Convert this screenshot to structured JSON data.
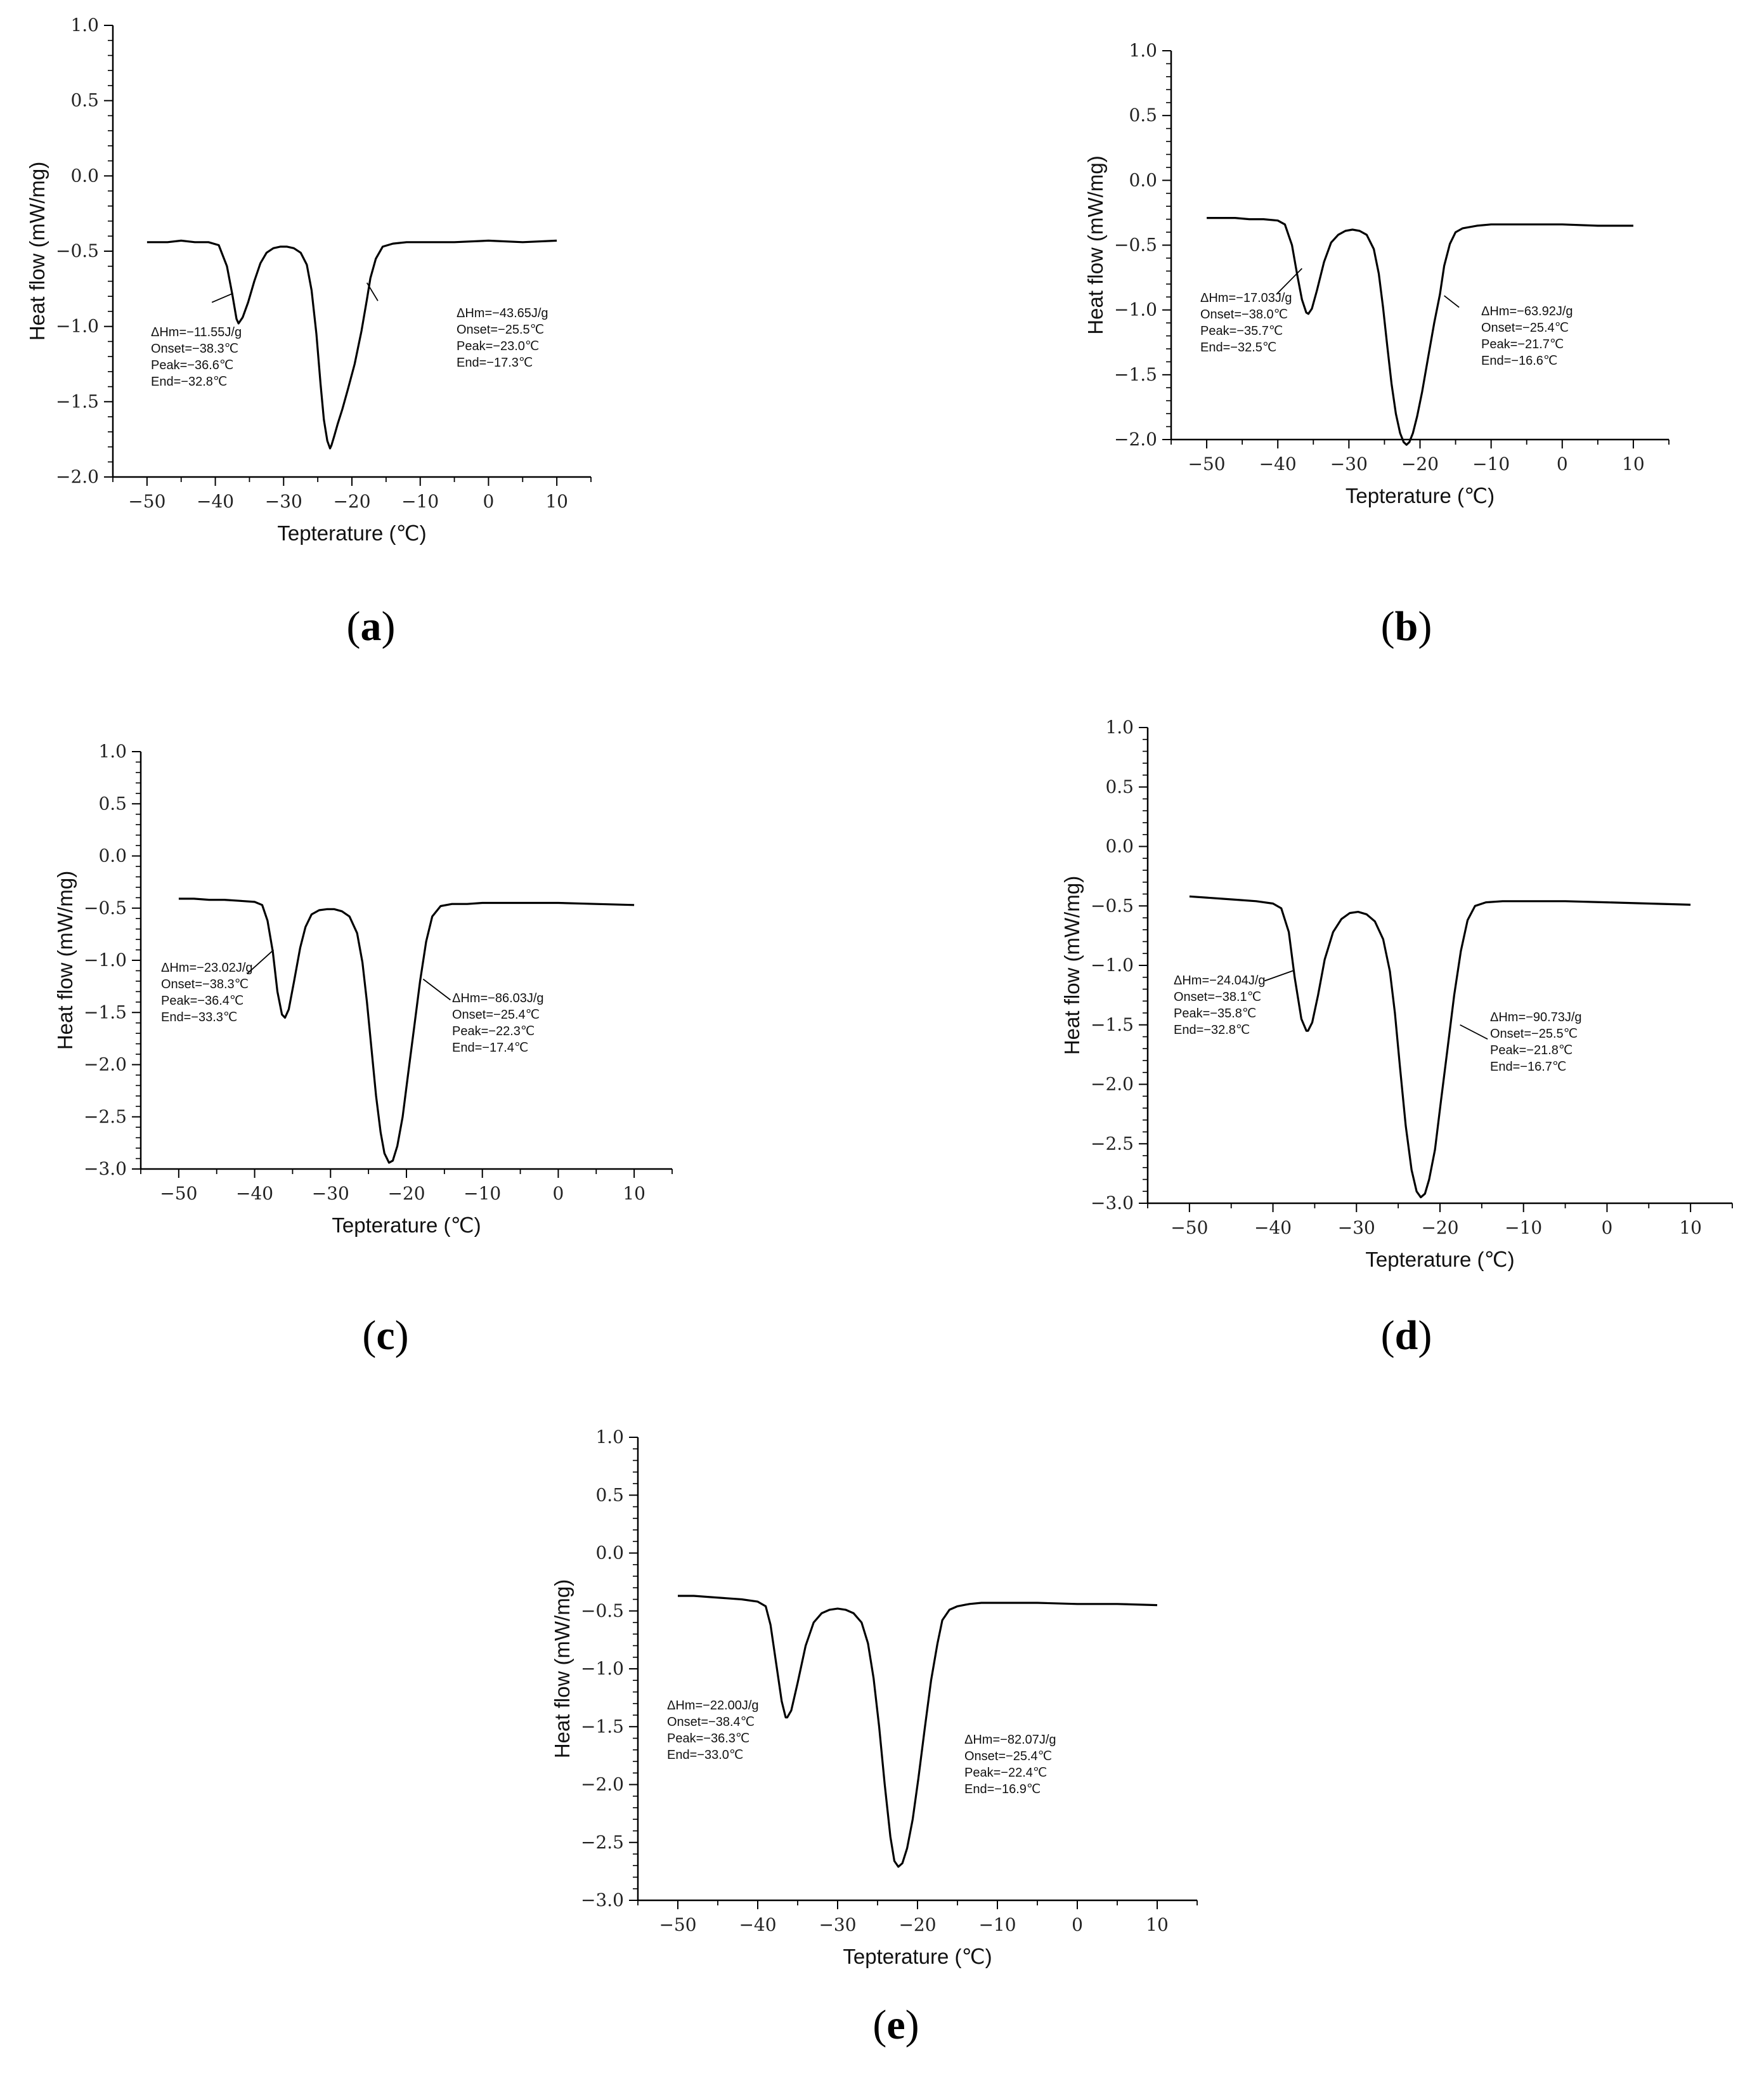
{
  "figure_labels": [
    "a",
    "b",
    "c",
    "d",
    "e"
  ],
  "chart_data": [
    {
      "id": "a",
      "type": "line",
      "xlabel": "Tepterature (℃)",
      "ylabel": "Heat flow (mW/mg)",
      "xlim": [
        -55,
        15
      ],
      "ylim": [
        -2.0,
        1.0
      ],
      "xticks": [
        -50,
        -40,
        -30,
        -20,
        -10,
        0,
        10
      ],
      "yticks": [
        -2.0,
        -1.5,
        -1.0,
        -0.5,
        0.0,
        0.5,
        1.0
      ],
      "tick_labels_x": [
        "−50",
        "−40",
        "−30",
        "−20",
        "−10",
        "0",
        "10"
      ],
      "tick_labels_y": [
        "−2.0",
        "−1.5",
        "−1.0",
        "−0.5",
        "0.0",
        "0.5",
        "1.0"
      ],
      "x": [
        -50,
        -47,
        -45,
        -43,
        -41,
        -39.5,
        -38.3,
        -37.5,
        -36.9,
        -36.6,
        -36.0,
        -35.2,
        -34.3,
        -33.4,
        -32.5,
        -31.5,
        -30.5,
        -29.5,
        -28.5,
        -27.5,
        -26.6,
        -25.9,
        -25.2,
        -24.6,
        -24.1,
        -23.6,
        -23.2,
        -23.0,
        -22.6,
        -22.1,
        -21.4,
        -20.6,
        -19.6,
        -18.6,
        -17.8,
        -17.3,
        -16.5,
        -15.5,
        -14.0,
        -12.0,
        -10,
        -5,
        0,
        5,
        10
      ],
      "y": [
        -0.44,
        -0.44,
        -0.43,
        -0.44,
        -0.44,
        -0.46,
        -0.6,
        -0.79,
        -0.95,
        -0.98,
        -0.94,
        -0.84,
        -0.7,
        -0.58,
        -0.51,
        -0.48,
        -0.47,
        -0.47,
        -0.48,
        -0.51,
        -0.59,
        -0.76,
        -1.05,
        -1.38,
        -1.62,
        -1.76,
        -1.81,
        -1.79,
        -1.73,
        -1.65,
        -1.55,
        -1.42,
        -1.25,
        -1.03,
        -0.82,
        -0.68,
        -0.55,
        -0.47,
        -0.45,
        -0.44,
        -0.44,
        -0.44,
        -0.43,
        -0.44,
        -0.43
      ],
      "annotations": [
        {
          "lines": [
            "ΔHm=−11.55J/g",
            "Onset=−38.3℃",
            "Peak=−36.6℃",
            "End=−32.8℃"
          ],
          "leader_from": [
            -40.5,
            -0.84
          ],
          "leader_to": [
            -37.4,
            -0.78
          ]
        },
        {
          "lines": [
            "ΔHm=−43.65J/g",
            "Onset=−25.5℃",
            "Peak=−23.0℃",
            "End=−17.3℃"
          ],
          "leader_from": [
            -16.2,
            -0.83
          ],
          "leader_to": [
            -17.8,
            -0.71
          ]
        }
      ]
    },
    {
      "id": "b",
      "type": "line",
      "xlabel": "Tepterature (℃)",
      "ylabel": "Heat flow (mW/mg)",
      "xlim": [
        -55,
        15
      ],
      "ylim": [
        -2.0,
        1.0
      ],
      "xticks": [
        -50,
        -40,
        -30,
        -20,
        -10,
        0,
        10
      ],
      "yticks": [
        -2.0,
        -1.5,
        -1.0,
        -0.5,
        0.0,
        0.5,
        1.0
      ],
      "tick_labels_x": [
        "−50",
        "−40",
        "−30",
        "−20",
        "−10",
        "0",
        "10"
      ],
      "tick_labels_y": [
        "−2.0",
        "−1.5",
        "−1.0",
        "−0.5",
        "0.0",
        "0.5",
        "1.0"
      ],
      "x": [
        -50,
        -48,
        -46,
        -44,
        -42,
        -40,
        -39,
        -38.0,
        -37.3,
        -36.6,
        -36.0,
        -35.7,
        -35.2,
        -34.5,
        -33.5,
        -32.5,
        -31.5,
        -30.5,
        -29.5,
        -28.5,
        -27.5,
        -26.5,
        -25.8,
        -25.2,
        -24.6,
        -24.0,
        -23.4,
        -22.8,
        -22.3,
        -21.9,
        -21.5,
        -21.0,
        -20.4,
        -19.7,
        -18.9,
        -18.0,
        -17.2,
        -16.6,
        -15.8,
        -15.0,
        -14.0,
        -12.0,
        -10,
        -5,
        0,
        5,
        10
      ],
      "y": [
        -0.29,
        -0.29,
        -0.29,
        -0.3,
        -0.3,
        -0.31,
        -0.34,
        -0.5,
        -0.72,
        -0.92,
        -1.02,
        -1.03,
        -0.99,
        -0.85,
        -0.63,
        -0.48,
        -0.42,
        -0.39,
        -0.38,
        -0.39,
        -0.42,
        -0.53,
        -0.72,
        -0.98,
        -1.28,
        -1.57,
        -1.8,
        -1.95,
        -2.02,
        -2.04,
        -2.02,
        -1.95,
        -1.82,
        -1.63,
        -1.38,
        -1.1,
        -0.88,
        -0.66,
        -0.49,
        -0.4,
        -0.37,
        -0.35,
        -0.34,
        -0.34,
        -0.34,
        -0.35,
        -0.35
      ],
      "annotations": [
        {
          "lines": [
            "ΔHm=−17.03J/g",
            "Onset=−38.0℃",
            "Peak=−35.7℃",
            "End=−32.5℃"
          ],
          "leader_from": [
            -40.2,
            -0.88
          ],
          "leader_to": [
            -36.6,
            -0.68
          ]
        },
        {
          "lines": [
            "ΔHm=−63.92J/g",
            "Onset=−25.4℃",
            "Peak=−21.7℃",
            "End=−16.6℃"
          ],
          "leader_from": [
            -14.5,
            -0.98
          ],
          "leader_to": [
            -16.6,
            -0.89
          ]
        }
      ]
    },
    {
      "id": "c",
      "type": "line",
      "xlabel": "Tepterature (℃)",
      "ylabel": "Heat flow (mW/mg)",
      "xlim": [
        -55,
        15
      ],
      "ylim": [
        -3.0,
        1.0
      ],
      "xticks": [
        -50,
        -40,
        -30,
        -20,
        -10,
        0,
        10
      ],
      "yticks": [
        -3.0,
        -2.5,
        -2.0,
        -1.5,
        -1.0,
        -0.5,
        0.0,
        0.5,
        1.0
      ],
      "tick_labels_x": [
        "−50",
        "−40",
        "−30",
        "−20",
        "−10",
        "0",
        "10"
      ],
      "tick_labels_y": [
        "−3.0",
        "−2.5",
        "−2.0",
        "−1.5",
        "−1.0",
        "−0.5",
        "0.0",
        "0.5",
        "1.0"
      ],
      "x": [
        -50,
        -48,
        -46,
        -44,
        -42,
        -40,
        -39.0,
        -38.3,
        -37.6,
        -37.0,
        -36.4,
        -36.0,
        -35.5,
        -34.8,
        -34.0,
        -33.3,
        -32.5,
        -31.5,
        -30.5,
        -29.5,
        -28.5,
        -27.5,
        -26.5,
        -25.8,
        -25.2,
        -24.6,
        -24.0,
        -23.4,
        -22.9,
        -22.3,
        -21.8,
        -21.2,
        -20.5,
        -19.8,
        -19.0,
        -18.2,
        -17.4,
        -16.6,
        -15.5,
        -14.0,
        -12.0,
        -10,
        -5,
        0,
        5,
        10
      ],
      "y": [
        -0.41,
        -0.41,
        -0.42,
        -0.42,
        -0.43,
        -0.44,
        -0.47,
        -0.62,
        -0.92,
        -1.3,
        -1.52,
        -1.55,
        -1.47,
        -1.2,
        -0.88,
        -0.68,
        -0.56,
        -0.52,
        -0.51,
        -0.51,
        -0.53,
        -0.58,
        -0.74,
        -1.02,
        -1.4,
        -1.85,
        -2.3,
        -2.65,
        -2.85,
        -2.94,
        -2.92,
        -2.78,
        -2.5,
        -2.1,
        -1.65,
        -1.2,
        -0.82,
        -0.58,
        -0.48,
        -0.46,
        -0.46,
        -0.45,
        -0.45,
        -0.45,
        -0.46,
        -0.47
      ],
      "annotations": [
        {
          "lines": [
            "ΔHm=−23.02J/g",
            "Onset=−38.3℃",
            "Peak=−36.4℃",
            "End=−33.3℃"
          ],
          "leader_from": [
            -41.0,
            -1.13
          ],
          "leader_to": [
            -37.5,
            -0.9
          ]
        },
        {
          "lines": [
            "ΔHm=−86.03J/g",
            "Onset=−25.4℃",
            "Peak=−22.3℃",
            "End=−17.4℃"
          ],
          "leader_from": [
            -14.2,
            -1.38
          ],
          "leader_to": [
            -17.8,
            -1.18
          ]
        }
      ]
    },
    {
      "id": "d",
      "type": "line",
      "xlabel": "Tepterature (℃)",
      "ylabel": "Heat flow (mW/mg)",
      "xlim": [
        -55,
        15
      ],
      "ylim": [
        -3.0,
        1.0
      ],
      "xticks": [
        -50,
        -40,
        -30,
        -20,
        -10,
        0,
        10
      ],
      "yticks": [
        -3.0,
        -2.5,
        -2.0,
        -1.5,
        -1.0,
        -0.5,
        0.0,
        0.5,
        1.0
      ],
      "tick_labels_x": [
        "−50",
        "−40",
        "−30",
        "−20",
        "−10",
        "0",
        "10"
      ],
      "tick_labels_y": [
        "−3.0",
        "−2.5",
        "−2.0",
        "−1.5",
        "−1.0",
        "−0.5",
        "0.0",
        "0.5",
        "1.0"
      ],
      "x": [
        -50,
        -48,
        -46,
        -44,
        -42,
        -40,
        -39.0,
        -38.1,
        -37.4,
        -36.6,
        -36.0,
        -35.8,
        -35.3,
        -34.6,
        -33.8,
        -32.8,
        -31.8,
        -30.8,
        -29.8,
        -28.8,
        -27.8,
        -26.8,
        -26.0,
        -25.4,
        -24.8,
        -24.1,
        -23.4,
        -22.8,
        -22.3,
        -21.8,
        -21.3,
        -20.6,
        -19.9,
        -19.1,
        -18.3,
        -17.5,
        -16.7,
        -15.8,
        -14.5,
        -12.5,
        -10,
        -5,
        0,
        5,
        10
      ],
      "y": [
        -0.42,
        -0.43,
        -0.44,
        -0.45,
        -0.46,
        -0.48,
        -0.52,
        -0.72,
        -1.1,
        -1.45,
        -1.55,
        -1.55,
        -1.48,
        -1.25,
        -0.95,
        -0.72,
        -0.61,
        -0.56,
        -0.55,
        -0.57,
        -0.63,
        -0.78,
        -1.05,
        -1.4,
        -1.85,
        -2.35,
        -2.72,
        -2.9,
        -2.95,
        -2.92,
        -2.8,
        -2.55,
        -2.15,
        -1.7,
        -1.25,
        -0.88,
        -0.62,
        -0.5,
        -0.47,
        -0.46,
        -0.46,
        -0.46,
        -0.47,
        -0.48,
        -0.49
      ],
      "annotations": [
        {
          "lines": [
            "ΔHm=−24.04J/g",
            "Onset=−38.1℃",
            "Peak=−35.8℃",
            "End=−32.8℃"
          ],
          "leader_from": [
            -41.0,
            -1.13
          ],
          "leader_to": [
            -37.4,
            -1.04
          ]
        },
        {
          "lines": [
            "ΔHm=−90.73J/g",
            "Onset=−25.5℃",
            "Peak=−21.8℃",
            "End=−16.7℃"
          ],
          "leader_from": [
            -14.3,
            -1.62
          ],
          "leader_to": [
            -17.6,
            -1.5
          ]
        }
      ]
    },
    {
      "id": "e",
      "type": "line",
      "xlabel": "Tepterature (℃)",
      "ylabel": "Heat flow (mW/mg)",
      "xlim": [
        -55,
        15
      ],
      "ylim": [
        -3.0,
        1.0
      ],
      "xticks": [
        -50,
        -40,
        -30,
        -20,
        -10,
        0,
        10
      ],
      "yticks": [
        -3.0,
        -2.5,
        -2.0,
        -1.5,
        -1.0,
        -0.5,
        0.0,
        0.5,
        1.0
      ],
      "tick_labels_x": [
        "−50",
        "−40",
        "−30",
        "−20",
        "−10",
        "0",
        "10"
      ],
      "tick_labels_y": [
        "−3.0",
        "−2.5",
        "−2.0",
        "−1.5",
        "−1.0",
        "−0.5",
        "0.0",
        "0.5",
        "1.0"
      ],
      "x": [
        -50,
        -48,
        -46,
        -44,
        -42,
        -40,
        -39.0,
        -38.4,
        -37.7,
        -37.0,
        -36.5,
        -36.3,
        -35.8,
        -35.0,
        -34.0,
        -33.0,
        -32.0,
        -31.0,
        -30.0,
        -29.0,
        -28.0,
        -27.0,
        -26.2,
        -25.5,
        -24.8,
        -24.1,
        -23.4,
        -22.9,
        -22.4,
        -21.9,
        -21.3,
        -20.6,
        -19.9,
        -19.1,
        -18.3,
        -17.5,
        -16.9,
        -16.0,
        -15.0,
        -13.5,
        -12.0,
        -10,
        -5,
        0,
        5,
        10
      ],
      "y": [
        -0.37,
        -0.37,
        -0.38,
        -0.39,
        -0.4,
        -0.42,
        -0.46,
        -0.62,
        -0.95,
        -1.28,
        -1.42,
        -1.42,
        -1.36,
        -1.12,
        -0.8,
        -0.6,
        -0.52,
        -0.49,
        -0.48,
        -0.49,
        -0.52,
        -0.6,
        -0.78,
        -1.08,
        -1.5,
        -2.0,
        -2.45,
        -2.66,
        -2.71,
        -2.68,
        -2.55,
        -2.3,
        -1.95,
        -1.52,
        -1.1,
        -0.78,
        -0.58,
        -0.49,
        -0.46,
        -0.44,
        -0.43,
        -0.43,
        -0.43,
        -0.44,
        -0.44,
        -0.45
      ],
      "annotations": [
        {
          "lines": [
            "ΔHm=−22.00J/g",
            "Onset=−38.4℃",
            "Peak=−36.3℃",
            "End=−33.0℃"
          ],
          "leader_from": null,
          "leader_to": null
        },
        {
          "lines": [
            "ΔHm=−82.07J/g",
            "Onset=−25.4℃",
            "Peak=−22.4℃",
            "End=−16.9℃"
          ],
          "leader_from": null,
          "leader_to": null
        }
      ]
    }
  ]
}
